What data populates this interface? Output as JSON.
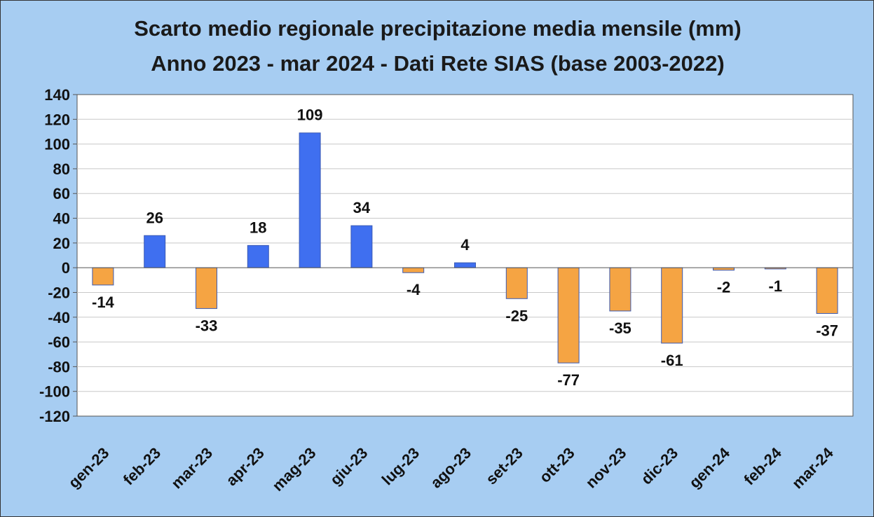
{
  "header": {
    "title_line1": "Scarto medio regionale precipitazione media mensile (mm)",
    "title_line2": "Anno 2023 -  mar 2024 - Dati Rete SIAS (base 2003-2022)"
  },
  "chart_data": {
    "type": "bar",
    "title": "Scarto medio regionale precipitazione media mensile (mm) Anno 2023 -  mar 2024 - Dati Rete SIAS (base 2003-2022)",
    "categories": [
      "gen-23",
      "feb-23",
      "mar-23",
      "apr-23",
      "mag-23",
      "giu-23",
      "lug-23",
      "ago-23",
      "set-23",
      "ott-23",
      "nov-23",
      "dic-23",
      "gen-24",
      "feb-24",
      "mar-24"
    ],
    "values": [
      -14,
      26,
      -33,
      18,
      109,
      34,
      -4,
      4,
      -25,
      -77,
      -35,
      -61,
      -2,
      -1,
      -37
    ],
    "ylim": [
      -120,
      140
    ],
    "yticks": [
      140,
      120,
      100,
      80,
      60,
      40,
      20,
      0,
      -20,
      -40,
      -60,
      -80,
      -100,
      -120
    ],
    "ytick_labels": [
      "140",
      "120",
      "100",
      "80",
      "60",
      "40",
      "20",
      "0",
      "-20",
      "-40",
      "-60",
      "-80",
      "-100",
      "-120"
    ],
    "grid": "horizontal",
    "legend": "none",
    "colors": {
      "positive": "#3f6ff0",
      "negative": "#f5a443",
      "bar_edge": "#3b5bb5",
      "background": "#a7cdf2",
      "plot_area": "#ffffff",
      "gridline": "#c8c8c8"
    }
  }
}
